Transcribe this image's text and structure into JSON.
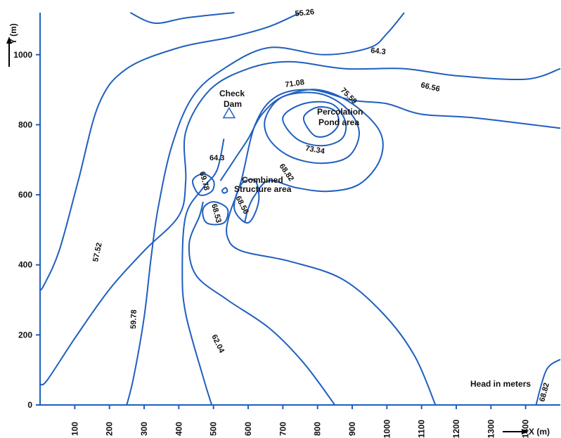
{
  "chart_data": {
    "type": "contour",
    "title": "",
    "xlabel": "X (m)",
    "ylabel": "Y (m)",
    "xlim": [
      0,
      1500
    ],
    "ylim": [
      0,
      1120
    ],
    "grid": false,
    "x_ticks": [
      "100",
      "200",
      "300",
      "400",
      "500",
      "600",
      "700",
      "800",
      "900",
      "1000",
      "1100",
      "1200",
      "1300",
      "1400"
    ],
    "y_ticks": [
      "0",
      "200",
      "400",
      "600",
      "800",
      "1000"
    ],
    "legend_text": "Head in meters",
    "contour_labels": [
      "55.26",
      "57.52",
      "59.78",
      "62.04",
      "64.3",
      "64.3",
      "66.56",
      "68.82",
      "68.82",
      "71.08",
      "73.34",
      "75.59",
      "69.78",
      "68.53",
      "68.56"
    ],
    "annotations": {
      "check_dam_line1": "Check",
      "check_dam_line2": "Dam",
      "pond_line1": "Percolation",
      "pond_line2": "Pond area",
      "combined_line1": "Combined",
      "combined_line2": "Structure area"
    },
    "contours": [
      {
        "name": "55.26",
        "points": [
          [
            260,
            1120
          ],
          [
            330,
            1090
          ],
          [
            420,
            1105
          ],
          [
            560,
            1120
          ]
        ]
      },
      {
        "name": "57.52",
        "points": [
          [
            0,
            330
          ],
          [
            10,
            340
          ],
          [
            55,
            440
          ],
          [
            110,
            640
          ],
          [
            170,
            860
          ],
          [
            250,
            960
          ],
          [
            400,
            1020
          ],
          [
            550,
            1050
          ],
          [
            660,
            1080
          ],
          [
            750,
            1120
          ]
        ]
      },
      {
        "name": "59.78",
        "points": [
          [
            250,
            0
          ],
          [
            270,
            80
          ],
          [
            300,
            250
          ],
          [
            320,
            420
          ],
          [
            340,
            560
          ],
          [
            380,
            740
          ],
          [
            440,
            880
          ],
          [
            530,
            960
          ],
          [
            660,
            1020
          ],
          [
            820,
            1000
          ],
          [
            950,
            1020
          ],
          [
            1000,
            1060
          ],
          [
            1050,
            1120
          ]
        ]
      },
      {
        "name": "62.04",
        "points": [
          [
            0,
            60
          ],
          [
            20,
            70
          ],
          [
            100,
            190
          ],
          [
            200,
            330
          ],
          [
            300,
            440
          ],
          [
            400,
            540
          ],
          [
            420,
            640
          ],
          [
            420,
            780
          ],
          [
            490,
            900
          ],
          [
            600,
            960
          ],
          [
            720,
            980
          ],
          [
            880,
            960
          ],
          [
            1050,
            960
          ],
          [
            1200,
            940
          ],
          [
            1400,
            930
          ],
          [
            1500,
            960
          ]
        ]
      },
      {
        "name": "64.3 left",
        "points": [
          [
            495,
            0
          ],
          [
            470,
            80
          ],
          [
            420,
            260
          ],
          [
            410,
            380
          ],
          [
            420,
            540
          ],
          [
            470,
            620
          ],
          [
            510,
            670
          ],
          [
            530,
            760
          ]
        ]
      },
      {
        "name": "64.3 mid",
        "points": [
          [
            850,
            0
          ],
          [
            760,
            120
          ],
          [
            660,
            220
          ],
          [
            540,
            300
          ],
          [
            450,
            370
          ],
          [
            430,
            460
          ],
          [
            460,
            540
          ],
          [
            470,
            580
          ]
        ]
      },
      {
        "name": "66.56",
        "points": [
          [
            1140,
            0
          ],
          [
            1080,
            140
          ],
          [
            990,
            260
          ],
          [
            870,
            360
          ],
          [
            720,
            410
          ],
          [
            580,
            440
          ],
          [
            540,
            480
          ],
          [
            545,
            540
          ],
          [
            580,
            640
          ],
          [
            620,
            800
          ],
          [
            680,
            880
          ],
          [
            780,
            900
          ],
          [
            900,
            870
          ],
          [
            1000,
            860
          ],
          [
            1100,
            830
          ],
          [
            1250,
            820
          ],
          [
            1500,
            790
          ]
        ]
      },
      {
        "name": "68.82 inner",
        "points": [
          [
            520,
            640
          ],
          [
            560,
            700
          ],
          [
            600,
            760
          ],
          [
            640,
            830
          ],
          [
            700,
            880
          ],
          [
            800,
            900
          ],
          [
            900,
            860
          ],
          [
            980,
            780
          ],
          [
            980,
            700
          ],
          [
            920,
            630
          ],
          [
            830,
            610
          ],
          [
            740,
            620
          ],
          [
            660,
            640
          ],
          [
            620,
            600
          ],
          [
            600,
            560
          ],
          [
            590,
            520
          ]
        ]
      },
      {
        "name": "68.82 right",
        "points": [
          [
            1430,
            0
          ],
          [
            1460,
            100
          ],
          [
            1500,
            130
          ]
        ]
      }
    ],
    "closed_contours": [
      {
        "name": "71.08",
        "points": [
          [
            650,
            820
          ],
          [
            700,
            880
          ],
          [
            800,
            890
          ],
          [
            880,
            850
          ],
          [
            920,
            780
          ],
          [
            890,
            710
          ],
          [
            810,
            690
          ],
          [
            720,
            710
          ],
          [
            660,
            760
          ]
        ]
      },
      {
        "name": "73.34",
        "points": [
          [
            700,
            820
          ],
          [
            760,
            860
          ],
          [
            840,
            860
          ],
          [
            880,
            810
          ],
          [
            870,
            760
          ],
          [
            810,
            740
          ],
          [
            740,
            760
          ]
        ]
      },
      {
        "name": "75.59",
        "points": [
          [
            760,
            820
          ],
          [
            800,
            850
          ],
          [
            850,
            840
          ],
          [
            860,
            800
          ],
          [
            830,
            770
          ],
          [
            790,
            770
          ]
        ]
      },
      {
        "name": "69.78",
        "points": [
          [
            440,
            640
          ],
          [
            470,
            660
          ],
          [
            500,
            640
          ],
          [
            495,
            610
          ],
          [
            460,
            600
          ]
        ]
      },
      {
        "name": "68.53",
        "points": [
          [
            470,
            560
          ],
          [
            500,
            580
          ],
          [
            540,
            560
          ],
          [
            530,
            520
          ],
          [
            480,
            520
          ]
        ]
      },
      {
        "name": "68.56",
        "points": [
          [
            560,
            560
          ],
          [
            580,
            630
          ],
          [
            620,
            640
          ],
          [
            630,
            580
          ],
          [
            600,
            520
          ]
        ]
      },
      {
        "name": "small",
        "points": [
          [
            525,
            612
          ],
          [
            535,
            620
          ],
          [
            540,
            610
          ],
          [
            530,
            605
          ]
        ]
      }
    ],
    "marker": {
      "name": "Check Dam",
      "shape": "triangle",
      "x": 545,
      "y": 830
    }
  }
}
